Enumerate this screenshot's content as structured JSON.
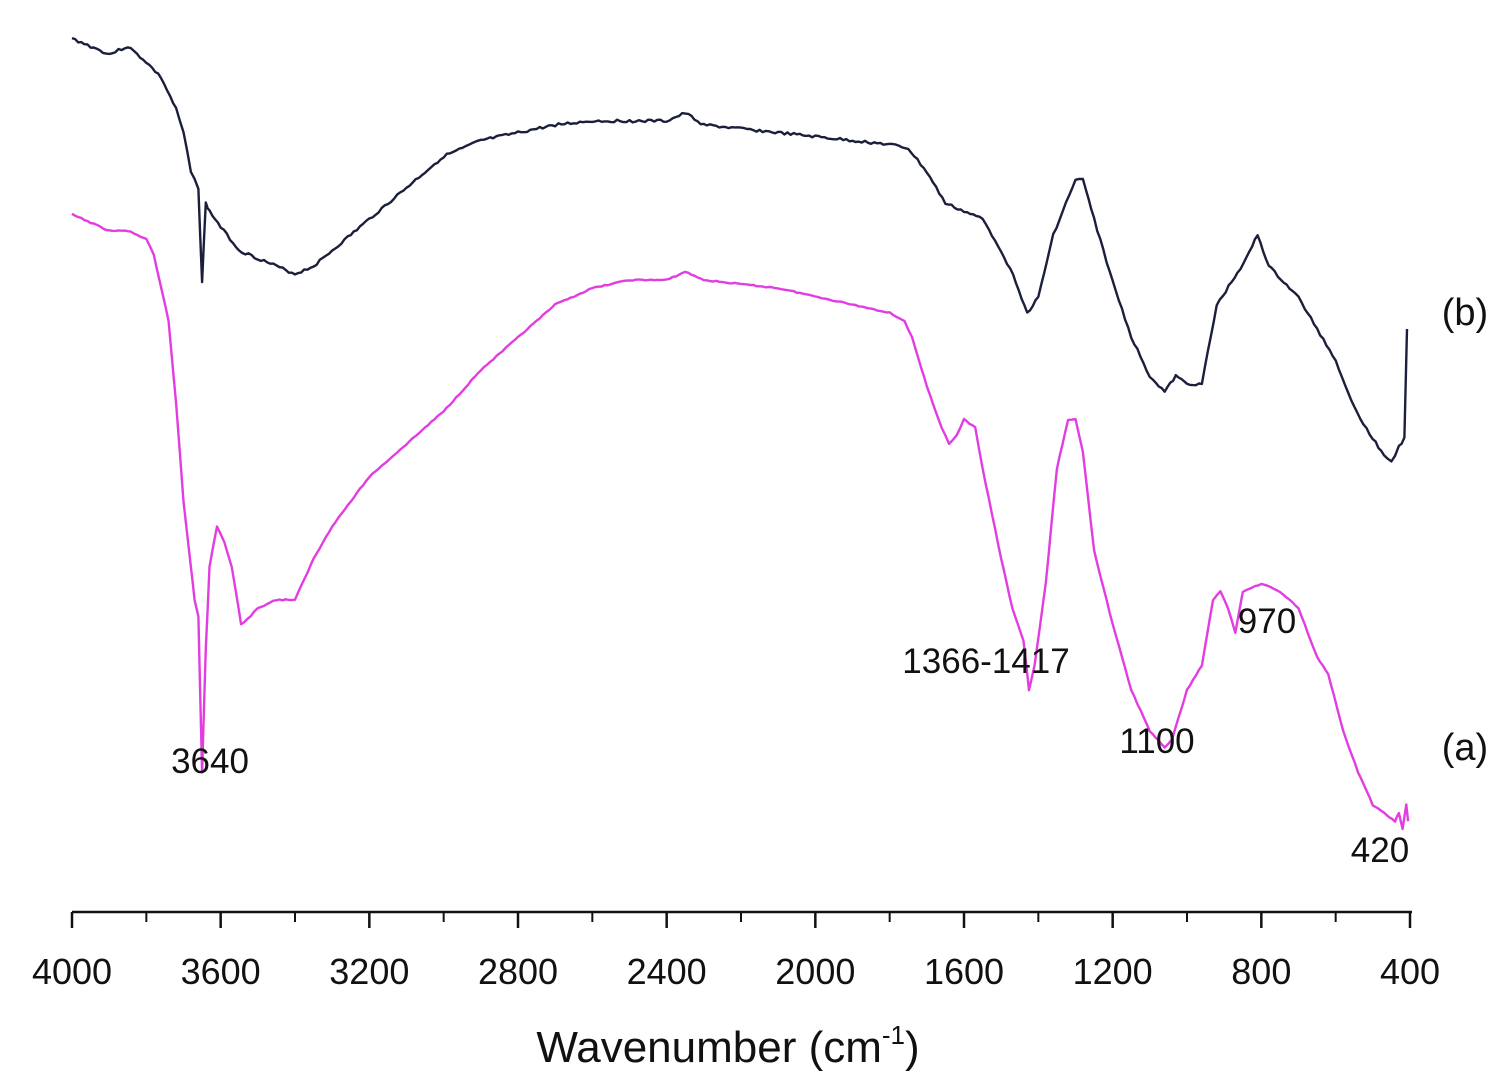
{
  "chart_data": {
    "type": "line",
    "title": "",
    "xlabel": "Wavenumber (cm",
    "xlabel_superscript": "-1",
    "xlabel_suffix": ")",
    "ylabel": "",
    "xlim": [
      4000,
      400
    ],
    "x_reversed": true,
    "grid": false,
    "x_ticks": [
      4000,
      3600,
      3200,
      2800,
      2400,
      2000,
      1600,
      1200,
      800,
      400
    ],
    "x_tick_labels": [
      "4000",
      "3600",
      "3200",
      "2800",
      "2400",
      "2000",
      "1600",
      "1200",
      "800",
      "400"
    ],
    "y_scale_note": "arbitrary transmittance (no y axis drawn)",
    "ylim": [
      0,
      100
    ],
    "series": [
      {
        "name": "(b)",
        "color": "#1b1f3b",
        "points": [
          [
            4000,
            97
          ],
          [
            3900,
            95
          ],
          [
            3850,
            96
          ],
          [
            3800,
            94
          ],
          [
            3760,
            92
          ],
          [
            3720,
            88
          ],
          [
            3700,
            85
          ],
          [
            3680,
            80
          ],
          [
            3660,
            78
          ],
          [
            3650,
            66
          ],
          [
            3640,
            76
          ],
          [
            3630,
            75
          ],
          [
            3600,
            73
          ],
          [
            3550,
            70
          ],
          [
            3500,
            69
          ],
          [
            3450,
            68
          ],
          [
            3400,
            67
          ],
          [
            3350,
            68
          ],
          [
            3300,
            70
          ],
          [
            3200,
            74
          ],
          [
            3100,
            78
          ],
          [
            3000,
            82
          ],
          [
            2950,
            83
          ],
          [
            2900,
            84
          ],
          [
            2800,
            85
          ],
          [
            2700,
            86
          ],
          [
            2600,
            86.5
          ],
          [
            2500,
            86.5
          ],
          [
            2400,
            86.5
          ],
          [
            2350,
            87.5
          ],
          [
            2300,
            86
          ],
          [
            2200,
            85.5
          ],
          [
            2100,
            85
          ],
          [
            2000,
            84.5
          ],
          [
            1900,
            84
          ],
          [
            1800,
            83.5
          ],
          [
            1750,
            83
          ],
          [
            1700,
            80
          ],
          [
            1650,
            76
          ],
          [
            1600,
            75
          ],
          [
            1550,
            74
          ],
          [
            1500,
            70
          ],
          [
            1460,
            66
          ],
          [
            1430,
            62
          ],
          [
            1400,
            64
          ],
          [
            1360,
            72
          ],
          [
            1300,
            79
          ],
          [
            1280,
            79
          ],
          [
            1250,
            74
          ],
          [
            1200,
            66
          ],
          [
            1150,
            59
          ],
          [
            1100,
            54
          ],
          [
            1060,
            52
          ],
          [
            1030,
            54
          ],
          [
            1000,
            53
          ],
          [
            960,
            53
          ],
          [
            920,
            63
          ],
          [
            880,
            66
          ],
          [
            840,
            69
          ],
          [
            810,
            72
          ],
          [
            780,
            68
          ],
          [
            700,
            64
          ],
          [
            650,
            60
          ],
          [
            600,
            56
          ],
          [
            550,
            50
          ],
          [
            500,
            46
          ],
          [
            470,
            44
          ],
          [
            450,
            43
          ],
          [
            430,
            45
          ],
          [
            415,
            46
          ],
          [
            408,
            60
          ]
        ]
      },
      {
        "name": "(a)",
        "color": "#e23de0",
        "points": [
          [
            4000,
            73
          ],
          [
            3900,
            71
          ],
          [
            3850,
            71
          ],
          [
            3800,
            70
          ],
          [
            3780,
            68
          ],
          [
            3740,
            60
          ],
          [
            3720,
            50
          ],
          [
            3700,
            38
          ],
          [
            3680,
            30
          ],
          [
            3670,
            26
          ],
          [
            3660,
            24
          ],
          [
            3650,
            5
          ],
          [
            3640,
            20
          ],
          [
            3630,
            30
          ],
          [
            3610,
            35
          ],
          [
            3590,
            33
          ],
          [
            3570,
            30
          ],
          [
            3545,
            23
          ],
          [
            3520,
            24
          ],
          [
            3500,
            25
          ],
          [
            3450,
            26
          ],
          [
            3400,
            26
          ],
          [
            3350,
            31
          ],
          [
            3300,
            35
          ],
          [
            3200,
            41
          ],
          [
            3100,
            45
          ],
          [
            3000,
            49
          ],
          [
            2900,
            54
          ],
          [
            2800,
            58
          ],
          [
            2700,
            62
          ],
          [
            2600,
            64
          ],
          [
            2500,
            65
          ],
          [
            2400,
            65
          ],
          [
            2350,
            66
          ],
          [
            2300,
            65
          ],
          [
            2200,
            64.5
          ],
          [
            2100,
            64
          ],
          [
            2000,
            63
          ],
          [
            1900,
            62
          ],
          [
            1800,
            61
          ],
          [
            1760,
            60
          ],
          [
            1740,
            58
          ],
          [
            1700,
            52
          ],
          [
            1660,
            47
          ],
          [
            1640,
            45
          ],
          [
            1620,
            46
          ],
          [
            1600,
            48
          ],
          [
            1570,
            47
          ],
          [
            1550,
            42
          ],
          [
            1500,
            31
          ],
          [
            1470,
            25
          ],
          [
            1440,
            21
          ],
          [
            1425,
            15
          ],
          [
            1410,
            18
          ],
          [
            1380,
            28
          ],
          [
            1350,
            42
          ],
          [
            1320,
            48
          ],
          [
            1300,
            48
          ],
          [
            1280,
            44
          ],
          [
            1250,
            32
          ],
          [
            1200,
            23
          ],
          [
            1150,
            15
          ],
          [
            1100,
            10
          ],
          [
            1060,
            8
          ],
          [
            1040,
            9
          ],
          [
            1000,
            15
          ],
          [
            960,
            18
          ],
          [
            930,
            26
          ],
          [
            910,
            27
          ],
          [
            890,
            25
          ],
          [
            870,
            22
          ],
          [
            850,
            27
          ],
          [
            800,
            28
          ],
          [
            750,
            27
          ],
          [
            700,
            25
          ],
          [
            650,
            19
          ],
          [
            620,
            17
          ],
          [
            580,
            10
          ],
          [
            540,
            5
          ],
          [
            500,
            1
          ],
          [
            470,
            0
          ],
          [
            440,
            -1
          ],
          [
            430,
            0
          ],
          [
            420,
            -2
          ],
          [
            410,
            1
          ],
          [
            405,
            -1
          ]
        ]
      }
    ],
    "annotations": [
      {
        "text": "3640",
        "x": 3640
      },
      {
        "text": "1366-1417",
        "x": 1390
      },
      {
        "text": "1100",
        "x": 1080
      },
      {
        "text": "970",
        "x": 930
      },
      {
        "text": "420",
        "x": 420
      }
    ],
    "series_labels": [
      "(b)",
      "(a)"
    ]
  }
}
